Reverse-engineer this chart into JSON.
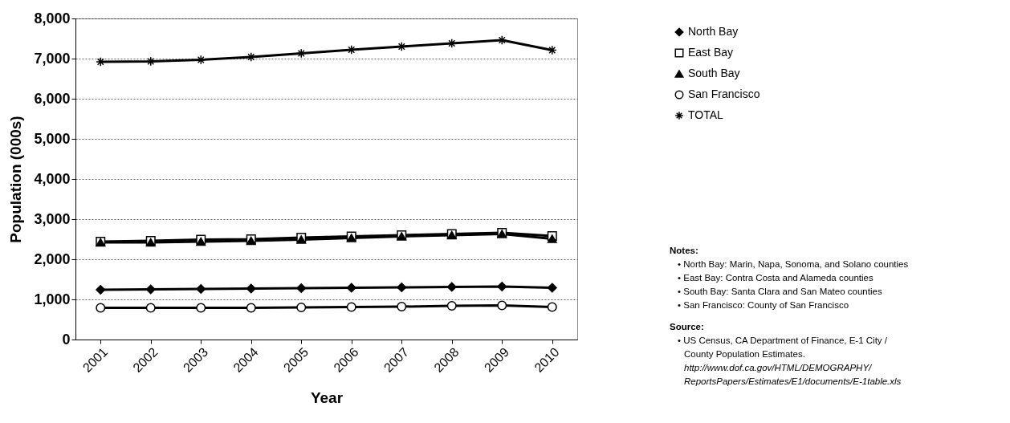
{
  "chart_data": {
    "type": "line",
    "xlabel": "Year",
    "ylabel": "Population (000s)",
    "categories": [
      "2001",
      "2002",
      "2003",
      "2004",
      "2005",
      "2006",
      "2007",
      "2008",
      "2009",
      "2010"
    ],
    "series": [
      {
        "name": "North Bay",
        "color": "#000000",
        "marker": "diamond",
        "values": [
          1240,
          1250,
          1260,
          1270,
          1280,
          1290,
          1300,
          1310,
          1320,
          1290
        ]
      },
      {
        "name": "East Bay",
        "color": "#000000",
        "marker": "square",
        "values": [
          2440,
          2460,
          2490,
          2500,
          2540,
          2570,
          2600,
          2630,
          2660,
          2580
        ]
      },
      {
        "name": "South Bay",
        "color": "#000000",
        "marker": "triangle",
        "values": [
          2420,
          2420,
          2440,
          2460,
          2490,
          2530,
          2570,
          2600,
          2630,
          2510
        ]
      },
      {
        "name": "San Francisco",
        "color": "#000000",
        "marker": "circle",
        "values": [
          790,
          790,
          790,
          790,
          800,
          810,
          820,
          840,
          850,
          810
        ]
      },
      {
        "name": "TOTAL",
        "color": "#000000",
        "marker": "cross",
        "values": [
          6920,
          6930,
          6970,
          7040,
          7130,
          7220,
          7300,
          7380,
          7460,
          7210
        ]
      }
    ],
    "ylim": [
      0,
      8000
    ],
    "yticks": [
      0,
      {
        "value": 1000,
        "label": "1,000"
      },
      {
        "value": 2000,
        "label": "2,000"
      },
      {
        "value": 3000,
        "label": "3,000"
      },
      {
        "value": 4000,
        "label": "4,000"
      },
      {
        "value": 5000,
        "label": "5,000"
      },
      {
        "value": 6000,
        "label": "6,000"
      },
      {
        "value": 7000,
        "label": "7,000"
      },
      {
        "value": 8000,
        "label": "8,000"
      }
    ],
    "grid": "y",
    "legend": "right",
    "annotations": [
      "Notes:",
      "• North Bay: Marin, Napa, Sonoma, and Solano counties",
      "• East Bay: Contra Costa and Alameda counties",
      "• South Bay: Santa Clara and San Mateo counties",
      "• San Francisco: County of San Francisco",
      "Source:",
      "• US Census, CA Department of Finance, E-1 City /",
      "County Population Estimates.",
      "http://www.dof.ca.gov/HTML/DEMOGRAPHY/",
      "ReportsPapers/Estimates/E1/documents/E-1table.xls"
    ]
  }
}
